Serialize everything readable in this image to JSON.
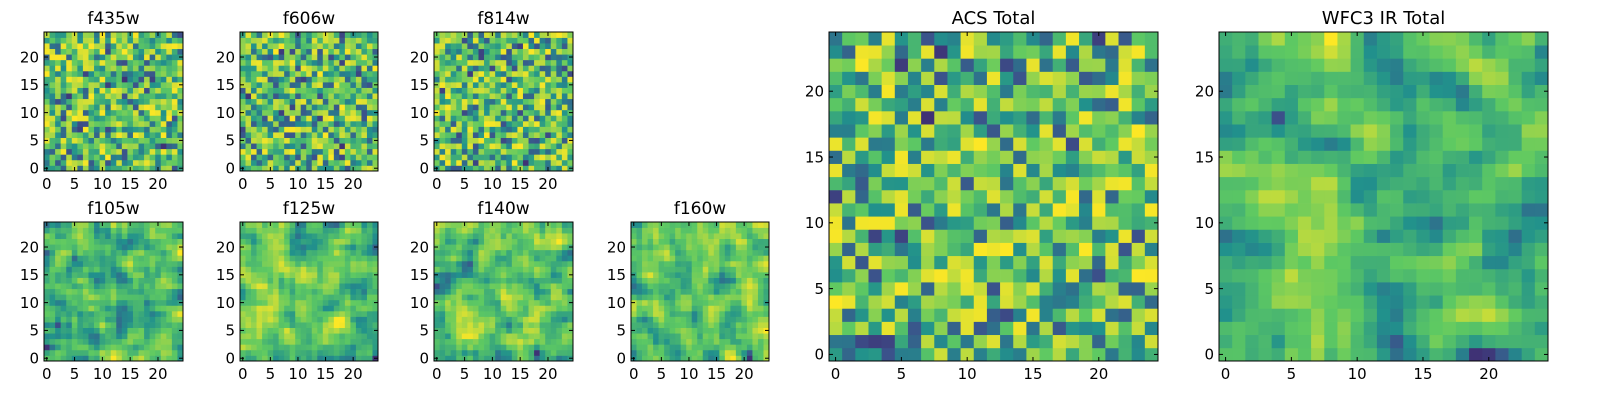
{
  "chart_data": [
    {
      "type": "heatmap",
      "title": "f435w",
      "x_ticks": [
        "0",
        "5",
        "10",
        "15",
        "20"
      ],
      "y_ticks": [
        "0",
        "5",
        "10",
        "15",
        "20"
      ],
      "xlim": [
        -0.5,
        24.5
      ],
      "ylim": [
        -0.5,
        24.5
      ],
      "grid": false,
      "colormap": "viridis",
      "pixels": "25x25"
    },
    {
      "type": "heatmap",
      "title": "f606w",
      "x_ticks": [
        "0",
        "5",
        "10",
        "15",
        "20"
      ],
      "y_ticks": [
        "0",
        "5",
        "10",
        "15",
        "20"
      ],
      "xlim": [
        -0.5,
        24.5
      ],
      "ylim": [
        -0.5,
        24.5
      ],
      "grid": false,
      "colormap": "viridis",
      "pixels": "25x25"
    },
    {
      "type": "heatmap",
      "title": "f814w",
      "x_ticks": [
        "0",
        "5",
        "10",
        "15",
        "20"
      ],
      "y_ticks": [
        "0",
        "5",
        "10",
        "15",
        "20"
      ],
      "xlim": [
        -0.5,
        24.5
      ],
      "ylim": [
        -0.5,
        24.5
      ],
      "grid": false,
      "colormap": "viridis",
      "pixels": "25x25"
    },
    {
      "type": "heatmap",
      "title": "f105w",
      "x_ticks": [
        "0",
        "5",
        "10",
        "15",
        "20"
      ],
      "y_ticks": [
        "0",
        "5",
        "10",
        "15",
        "20"
      ],
      "xlim": [
        -0.5,
        24.5
      ],
      "ylim": [
        -0.5,
        24.5
      ],
      "grid": false,
      "colormap": "viridis",
      "pixels": "25x25"
    },
    {
      "type": "heatmap",
      "title": "f125w",
      "x_ticks": [
        "0",
        "5",
        "10",
        "15",
        "20"
      ],
      "y_ticks": [
        "0",
        "5",
        "10",
        "15",
        "20"
      ],
      "xlim": [
        -0.5,
        24.5
      ],
      "ylim": [
        -0.5,
        24.5
      ],
      "grid": false,
      "colormap": "viridis",
      "pixels": "25x25"
    },
    {
      "type": "heatmap",
      "title": "f140w",
      "x_ticks": [
        "0",
        "5",
        "10",
        "15",
        "20"
      ],
      "y_ticks": [
        "0",
        "5",
        "10",
        "15",
        "20"
      ],
      "xlim": [
        -0.5,
        24.5
      ],
      "ylim": [
        -0.5,
        24.5
      ],
      "grid": false,
      "colormap": "viridis",
      "pixels": "25x25"
    },
    {
      "type": "heatmap",
      "title": "f160w",
      "x_ticks": [
        "0",
        "5",
        "10",
        "15",
        "20"
      ],
      "y_ticks": [
        "0",
        "5",
        "10",
        "15",
        "20"
      ],
      "xlim": [
        -0.5,
        24.5
      ],
      "ylim": [
        -0.5,
        24.5
      ],
      "grid": false,
      "colormap": "viridis",
      "pixels": "25x25"
    },
    {
      "type": "heatmap",
      "title": "ACS Total",
      "x_ticks": [
        "0",
        "5",
        "10",
        "15",
        "20"
      ],
      "y_ticks": [
        "0",
        "5",
        "10",
        "15",
        "20"
      ],
      "xlim": [
        -0.5,
        24.5
      ],
      "ylim": [
        -0.5,
        24.5
      ],
      "grid": false,
      "colormap": "viridis",
      "pixels": "25x25"
    },
    {
      "type": "heatmap",
      "title": "WFC3 IR Total",
      "x_ticks": [
        "0",
        "5",
        "10",
        "15",
        "20"
      ],
      "y_ticks": [
        "0",
        "5",
        "10",
        "15",
        "20"
      ],
      "xlim": [
        -0.5,
        24.5
      ],
      "ylim": [
        -0.5,
        24.5
      ],
      "grid": false,
      "colormap": "viridis",
      "pixels": "25x25"
    }
  ],
  "colors": {
    "colormap_stops": [
      "#440154",
      "#3b528b",
      "#21918c",
      "#5ec962",
      "#fde725"
    ]
  }
}
